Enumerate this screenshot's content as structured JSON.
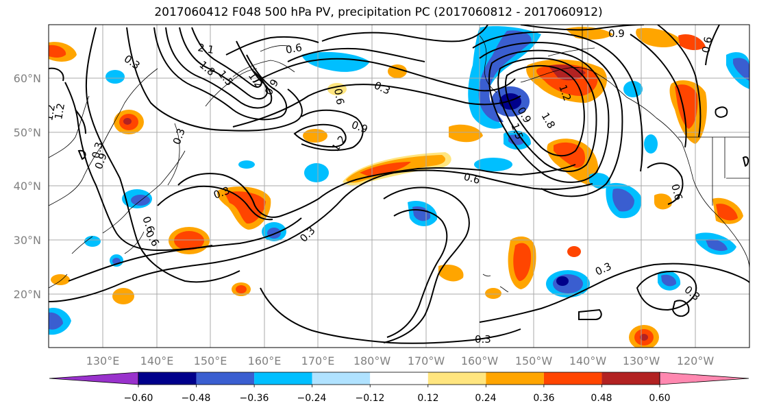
{
  "title": "2017060412 F048 500 hPa PV, precipitation PC (2017060812 - 2017060912)",
  "map": {
    "lat_labels": [
      "60°N",
      "50°N",
      "40°N",
      "30°N",
      "20°N"
    ],
    "lon_labels": [
      "130°E",
      "140°E",
      "150°E",
      "160°E",
      "170°E",
      "180°W",
      "170°W",
      "160°W",
      "150°W",
      "140°W",
      "130°W",
      "120°W"
    ],
    "contour_labels": [
      "2.1",
      "1.8",
      "1.5",
      "1.2",
      "0.9",
      "0.6",
      "0.3",
      "0.6",
      "0.9",
      "0.3",
      "0.9",
      "1.2",
      "0.3",
      "0.6",
      "0.6",
      "0.3",
      "0.3",
      "1.2",
      "0.9",
      "1.5",
      "1.8",
      "1.2",
      "0.9",
      "0.6",
      "0.6",
      "0.3",
      "0.3",
      "0.3",
      "1.2",
      "0.3",
      "0.6"
    ]
  },
  "colorbar": {
    "ticks": [
      "−0.60",
      "−0.48",
      "−0.36",
      "−0.24",
      "−0.12",
      "0.12",
      "0.24",
      "0.36",
      "0.48",
      "0.60"
    ],
    "colors": [
      "#9932cc",
      "#00008b",
      "#3a5ed0",
      "#00bfff",
      "#b0e2ff",
      "#ffffff",
      "#ffe57f",
      "#ffa500",
      "#ff4500",
      "#b22222",
      "#ff88b0"
    ]
  }
}
